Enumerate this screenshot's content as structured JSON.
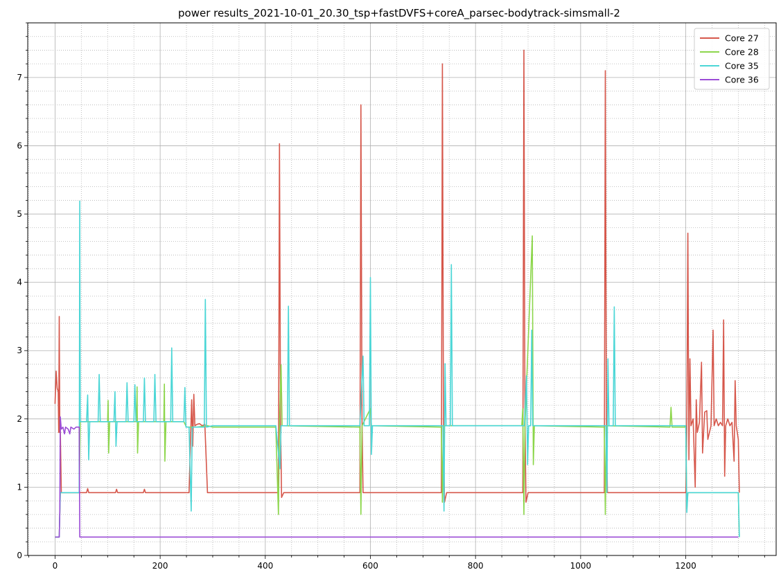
{
  "chart_data": {
    "type": "line",
    "title": "power results_2021-10-01_20.30_tsp+fastDVFS+coreA_parsec-bodytrack-simsmall-2",
    "xlabel": "",
    "ylabel": "",
    "xlim": [
      -52,
      1372
    ],
    "ylim": [
      0,
      7.8
    ],
    "x_ticks": [
      0,
      200,
      400,
      600,
      800,
      1000,
      1200
    ],
    "y_ticks": [
      0,
      1,
      2,
      3,
      4,
      5,
      6,
      7
    ],
    "grid": {
      "major": true,
      "minor": true
    },
    "legend_position": "upper right",
    "series": [
      {
        "name": "Core 27",
        "color": "#d6574b",
        "points": [
          [
            0,
            2.22
          ],
          [
            2,
            2.7
          ],
          [
            4,
            2.45
          ],
          [
            6,
            2.4
          ],
          [
            7,
            1.8
          ],
          [
            8,
            3.5
          ],
          [
            9,
            1.8
          ],
          [
            10,
            1.85
          ],
          [
            12,
            0.92
          ],
          [
            40,
            0.92
          ],
          [
            60,
            0.92
          ],
          [
            62,
            0.98
          ],
          [
            64,
            0.92
          ],
          [
            115,
            0.92
          ],
          [
            117,
            0.97
          ],
          [
            119,
            0.92
          ],
          [
            168,
            0.92
          ],
          [
            170,
            0.97
          ],
          [
            172,
            0.92
          ],
          [
            255,
            0.92
          ],
          [
            260,
            2.28
          ],
          [
            262,
            1.6
          ],
          [
            264,
            2.36
          ],
          [
            266,
            1.9
          ],
          [
            270,
            1.92
          ],
          [
            275,
            1.93
          ],
          [
            280,
            1.9
          ],
          [
            285,
            1.92
          ],
          [
            290,
            0.92
          ],
          [
            425,
            0.92
          ],
          [
            427,
            6.03
          ],
          [
            429,
            2.0
          ],
          [
            431,
            0.85
          ],
          [
            435,
            0.92
          ],
          [
            580,
            0.92
          ],
          [
            582,
            6.6
          ],
          [
            584,
            2.0
          ],
          [
            586,
            0.92
          ],
          [
            735,
            0.92
          ],
          [
            737,
            7.2
          ],
          [
            739,
            2.0
          ],
          [
            741,
            0.78
          ],
          [
            745,
            0.92
          ],
          [
            890,
            0.92
          ],
          [
            892,
            7.4
          ],
          [
            894,
            2.0
          ],
          [
            896,
            0.78
          ],
          [
            900,
            0.92
          ],
          [
            1045,
            0.92
          ],
          [
            1047,
            7.1
          ],
          [
            1049,
            2.0
          ],
          [
            1051,
            0.92
          ],
          [
            1200,
            0.92
          ],
          [
            1202,
            1.9
          ],
          [
            1204,
            4.72
          ],
          [
            1206,
            1.4
          ],
          [
            1208,
            2.88
          ],
          [
            1210,
            1.9
          ],
          [
            1214,
            2.0
          ],
          [
            1218,
            1.0
          ],
          [
            1220,
            2.28
          ],
          [
            1222,
            1.8
          ],
          [
            1226,
            1.95
          ],
          [
            1230,
            2.83
          ],
          [
            1232,
            1.5
          ],
          [
            1236,
            2.1
          ],
          [
            1240,
            2.12
          ],
          [
            1242,
            1.7
          ],
          [
            1248,
            1.9
          ],
          [
            1252,
            3.3
          ],
          [
            1254,
            1.9
          ],
          [
            1258,
            2.0
          ],
          [
            1262,
            1.9
          ],
          [
            1266,
            1.95
          ],
          [
            1270,
            1.9
          ],
          [
            1272,
            3.45
          ],
          [
            1274,
            1.16
          ],
          [
            1276,
            1.9
          ],
          [
            1280,
            2.0
          ],
          [
            1284,
            1.9
          ],
          [
            1288,
            1.95
          ],
          [
            1292,
            1.38
          ],
          [
            1294,
            2.56
          ],
          [
            1296,
            1.9
          ],
          [
            1300,
            1.7
          ],
          [
            1302,
            0.92
          ]
        ]
      },
      {
        "name": "Core 28",
        "color": "#8cd64b",
        "points": [
          [
            0,
            0.27
          ],
          [
            8,
            0.27
          ],
          [
            10,
            0.92
          ],
          [
            46,
            0.92
          ],
          [
            48,
            1.96
          ],
          [
            60,
            1.96
          ],
          [
            80,
            1.96
          ],
          [
            100,
            1.96
          ],
          [
            101,
            2.27
          ],
          [
            102,
            1.5
          ],
          [
            104,
            1.96
          ],
          [
            155,
            1.96
          ],
          [
            156,
            2.47
          ],
          [
            157,
            1.5
          ],
          [
            159,
            1.96
          ],
          [
            207,
            1.96
          ],
          [
            208,
            2.51
          ],
          [
            209,
            1.38
          ],
          [
            211,
            1.96
          ],
          [
            245,
            1.96
          ],
          [
            250,
            1.88
          ],
          [
            270,
            1.88
          ],
          [
            290,
            1.9
          ],
          [
            300,
            1.88
          ],
          [
            420,
            1.88
          ],
          [
            425,
            0.6
          ],
          [
            427,
            1.9
          ],
          [
            430,
            2.79
          ],
          [
            432,
            1.9
          ],
          [
            580,
            1.88
          ],
          [
            582,
            0.6
          ],
          [
            584,
            1.9
          ],
          [
            600,
            2.15
          ],
          [
            602,
            1.9
          ],
          [
            735,
            1.88
          ],
          [
            737,
            0.78
          ],
          [
            739,
            1.9
          ],
          [
            745,
            1.9
          ],
          [
            888,
            1.9
          ],
          [
            890,
            2.15
          ],
          [
            892,
            0.6
          ],
          [
            894,
            1.9
          ],
          [
            908,
            4.68
          ],
          [
            910,
            1.33
          ],
          [
            912,
            1.9
          ],
          [
            1045,
            1.88
          ],
          [
            1047,
            0.6
          ],
          [
            1049,
            1.9
          ],
          [
            1170,
            1.88
          ],
          [
            1172,
            2.17
          ],
          [
            1174,
            1.88
          ],
          [
            1198,
            1.88
          ],
          [
            1200,
            1.9
          ],
          [
            1202,
            0.68
          ],
          [
            1204,
            0.92
          ],
          [
            1300,
            0.92
          ],
          [
            1302,
            0.27
          ]
        ]
      },
      {
        "name": "Core 35",
        "color": "#4bd6d6",
        "points": [
          [
            0,
            0.27
          ],
          [
            8,
            0.27
          ],
          [
            10,
            0.92
          ],
          [
            46,
            0.92
          ],
          [
            47,
            5.19
          ],
          [
            48,
            1.96
          ],
          [
            60,
            1.96
          ],
          [
            62,
            2.35
          ],
          [
            64,
            1.4
          ],
          [
            66,
            1.96
          ],
          [
            82,
            1.96
          ],
          [
            84,
            2.65
          ],
          [
            86,
            1.96
          ],
          [
            112,
            1.96
          ],
          [
            114,
            2.4
          ],
          [
            116,
            1.6
          ],
          [
            118,
            1.96
          ],
          [
            135,
            1.96
          ],
          [
            137,
            2.53
          ],
          [
            139,
            1.96
          ],
          [
            150,
            1.96
          ],
          [
            152,
            2.5
          ],
          [
            154,
            1.96
          ],
          [
            168,
            1.96
          ],
          [
            170,
            2.6
          ],
          [
            172,
            1.96
          ],
          [
            188,
            1.96
          ],
          [
            190,
            2.65
          ],
          [
            192,
            1.96
          ],
          [
            220,
            1.96
          ],
          [
            222,
            3.04
          ],
          [
            224,
            1.96
          ],
          [
            245,
            1.96
          ],
          [
            247,
            2.46
          ],
          [
            249,
            1.88
          ],
          [
            255,
            1.88
          ],
          [
            259,
            0.65
          ],
          [
            261,
            1.88
          ],
          [
            284,
            1.88
          ],
          [
            286,
            3.75
          ],
          [
            288,
            1.88
          ],
          [
            300,
            1.9
          ],
          [
            420,
            1.9
          ],
          [
            428,
            1.27
          ],
          [
            430,
            1.9
          ],
          [
            442,
            1.9
          ],
          [
            444,
            3.65
          ],
          [
            446,
            1.9
          ],
          [
            580,
            1.9
          ],
          [
            586,
            2.92
          ],
          [
            588,
            1.9
          ],
          [
            598,
            1.9
          ],
          [
            600,
            4.07
          ],
          [
            602,
            1.48
          ],
          [
            604,
            1.9
          ],
          [
            738,
            1.9
          ],
          [
            740,
            0.65
          ],
          [
            742,
            2.81
          ],
          [
            744,
            1.9
          ],
          [
            752,
            1.9
          ],
          [
            754,
            4.26
          ],
          [
            756,
            1.9
          ],
          [
            893,
            1.9
          ],
          [
            897,
            2.63
          ],
          [
            899,
            1.33
          ],
          [
            901,
            1.9
          ],
          [
            905,
            1.9
          ],
          [
            907,
            3.3
          ],
          [
            909,
            1.9
          ],
          [
            1048,
            1.9
          ],
          [
            1050,
            0.92
          ],
          [
            1052,
            2.88
          ],
          [
            1054,
            1.9
          ],
          [
            1062,
            1.9
          ],
          [
            1064,
            3.64
          ],
          [
            1066,
            1.9
          ],
          [
            1200,
            1.9
          ],
          [
            1202,
            0.63
          ],
          [
            1204,
            0.92
          ],
          [
            1300,
            0.92
          ],
          [
            1302,
            0.27
          ]
        ]
      },
      {
        "name": "Core 36",
        "color": "#9b4bd6",
        "points": [
          [
            0,
            0.27
          ],
          [
            8,
            0.27
          ],
          [
            9,
            0.65
          ],
          [
            10,
            2.03
          ],
          [
            12,
            1.85
          ],
          [
            15,
            1.88
          ],
          [
            18,
            1.78
          ],
          [
            20,
            1.88
          ],
          [
            25,
            1.85
          ],
          [
            28,
            1.78
          ],
          [
            30,
            1.88
          ],
          [
            36,
            1.85
          ],
          [
            40,
            1.88
          ],
          [
            46,
            1.88
          ],
          [
            47,
            0.27
          ],
          [
            1300,
            0.27
          ]
        ]
      }
    ]
  }
}
